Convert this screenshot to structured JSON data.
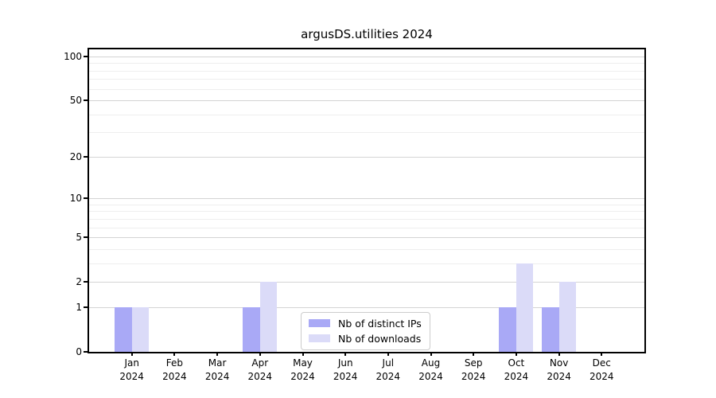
{
  "title": "argusDS.utilities 2024",
  "chart_data": {
    "type": "bar",
    "title": "argusDS.utilities 2024",
    "categories": [
      "Jan 2024",
      "Feb 2024",
      "Mar 2024",
      "Apr 2024",
      "May 2024",
      "Jun 2024",
      "Jul 2024",
      "Aug 2024",
      "Sep 2024",
      "Oct 2024",
      "Nov 2024",
      "Dec 2024"
    ],
    "x_tick_months": [
      "Jan",
      "Feb",
      "Mar",
      "Apr",
      "May",
      "Jun",
      "Jul",
      "Aug",
      "Sep",
      "Oct",
      "Nov",
      "Dec"
    ],
    "x_tick_year": "2024",
    "series": [
      {
        "name": "Nb of distinct IPs",
        "color": "#a9a9f6",
        "values": [
          1,
          0,
          0,
          1,
          0,
          0,
          0,
          0,
          0,
          1,
          1,
          0
        ]
      },
      {
        "name": "Nb of downloads",
        "color": "#dbdbf8",
        "values": [
          1,
          0,
          0,
          2,
          0,
          0,
          0,
          0,
          0,
          3,
          2,
          0
        ]
      }
    ],
    "xlabel": "",
    "ylabel": "",
    "y_scale": "log1p",
    "ylim": [
      0,
      100
    ],
    "y_ticks": [
      0,
      1,
      2,
      5,
      10,
      20,
      50,
      100
    ],
    "y_minor_gridlines": [
      3,
      4,
      6,
      7,
      8,
      9,
      30,
      40,
      60,
      70,
      80,
      90
    ],
    "grid": "horizontal major and minor gridlines",
    "legend_position": "lower center inside axes"
  },
  "colors": {
    "bar_distinct_ips": "#a9a9f6",
    "bar_downloads": "#dbdbf8",
    "grid_major": "#d4d4d4",
    "grid_minor": "#eeeeee",
    "spine": "#000000",
    "background": "#ffffff",
    "legend_border": "#cccccc"
  }
}
